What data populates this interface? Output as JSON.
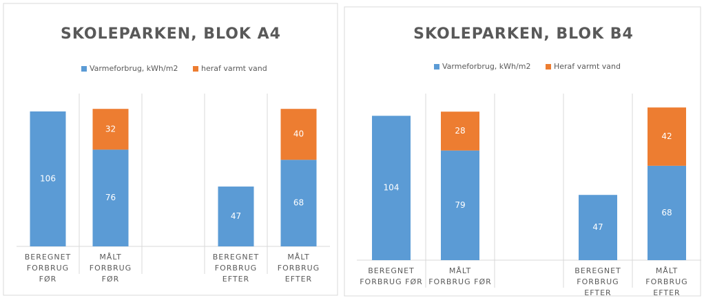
{
  "chart_data": [
    {
      "type": "bar",
      "stacked": true,
      "title": "SKOLEPARKEN, BLOK A4",
      "categories": [
        "BEREGNET FORBRUG FØR",
        "MÅLT FORBRUG FØR",
        null,
        "BEREGNET FORBRUG EFTER",
        "MÅLT FORBRUG EFTER"
      ],
      "series": [
        {
          "name": "Varmeforbrug, kWh/m2",
          "color": "#5b9bd5",
          "values": [
            106,
            76,
            null,
            47,
            68
          ]
        },
        {
          "name": "heraf varmt vand",
          "color": "#ed7d31",
          "values": [
            null,
            32,
            null,
            null,
            40
          ]
        }
      ],
      "ylim": [
        0,
        120
      ]
    },
    {
      "type": "bar",
      "stacked": true,
      "title": "SKOLEPARKEN, BLOK B4",
      "categories": [
        "BEREGNET FORBRUG FØR",
        "MÅLT FORBRUG FØR",
        null,
        "BEREGNET FORBRUG EFTER",
        "MÅLT FORBRUG EFTER"
      ],
      "series": [
        {
          "name": "Varmeforbrug, kWh/m2",
          "color": "#5b9bd5",
          "values": [
            104,
            79,
            null,
            47,
            68
          ]
        },
        {
          "name": "Heraf varmt vand",
          "color": "#ed7d31",
          "values": [
            null,
            28,
            null,
            null,
            42
          ]
        }
      ],
      "ylim": [
        0,
        120
      ]
    }
  ]
}
